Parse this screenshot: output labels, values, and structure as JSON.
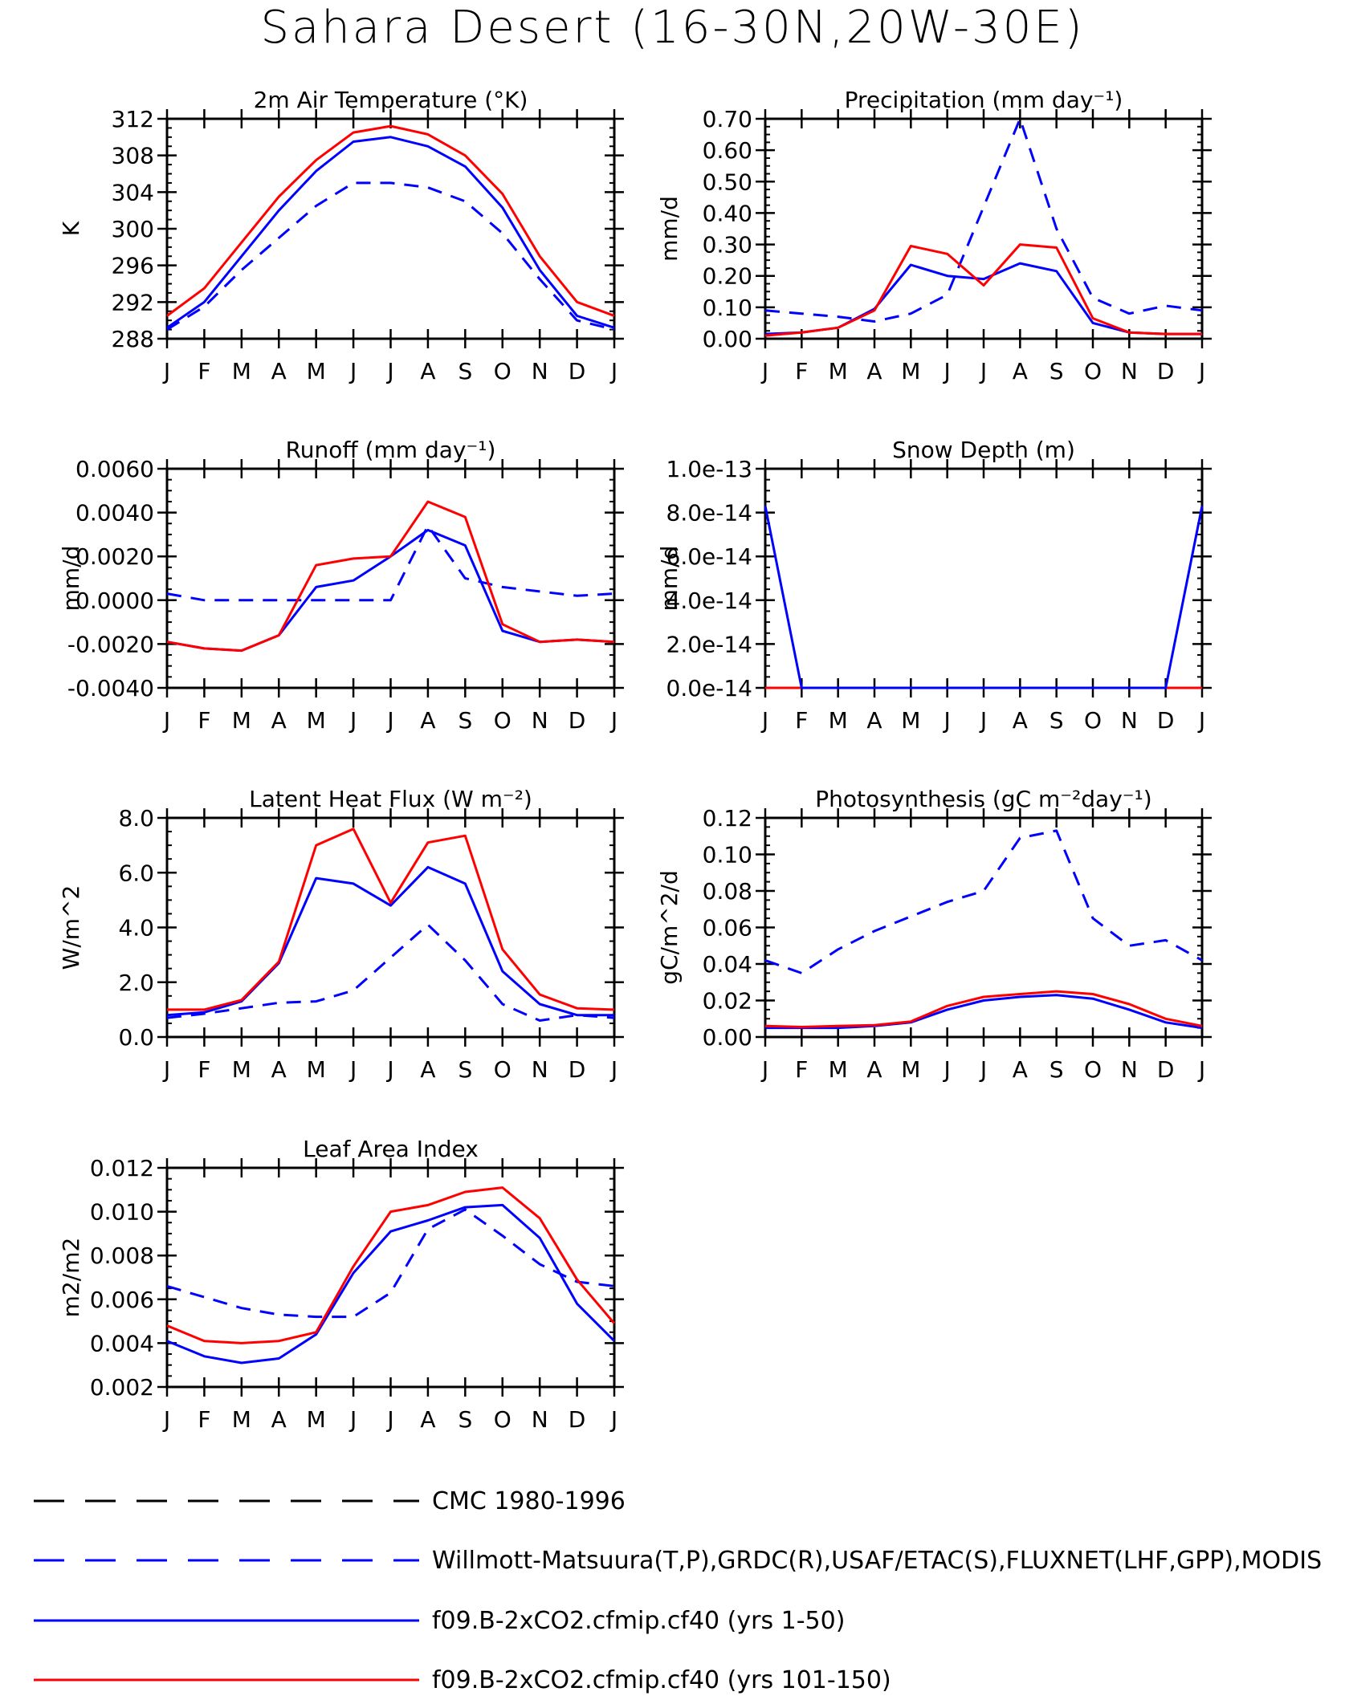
{
  "title": "Sahara Desert (16-30N,20W-30E)",
  "months": [
    "J",
    "F",
    "M",
    "A",
    "M",
    "J",
    "J",
    "A",
    "S",
    "O",
    "N",
    "D",
    "J"
  ],
  "colors": {
    "obs": "#0000ff",
    "cmc": "#000000",
    "run1": "#0000ff",
    "run2": "#ff0000"
  },
  "legend": [
    {
      "label": "CMC 1980-1996",
      "color": "#000000",
      "dash": true
    },
    {
      "label": "Willmott-Matsuura(T,P),GRDC(R),USAF/ETAC(S),FLUXNET(LHF,GPP),MODIS",
      "color": "#0000ff",
      "dash": true
    },
    {
      "label": "f09.B-2xCO2.cfmip.cf40 (yrs 1-50)",
      "color": "#0000ff",
      "dash": false
    },
    {
      "label": "f09.B-2xCO2.cfmip.cf40 (yrs 101-150)",
      "color": "#ff0000",
      "dash": false
    }
  ],
  "chart_data": [
    {
      "type": "line",
      "title": "2m Air Temperature (°K)",
      "ylabel": "K",
      "ylim": [
        288,
        312
      ],
      "yticks": [
        "288",
        "292",
        "296",
        "300",
        "304",
        "308",
        "312"
      ],
      "series": [
        {
          "name": "Willmott-Matsuura(T,P),GRDC(R),USAF/ETAC(S),FLUXNET(LHF,GPP),MODIS",
          "values": [
            289.0,
            291.5,
            295.5,
            299.0,
            302.5,
            305.0,
            305.0,
            304.5,
            303.0,
            299.5,
            294.5,
            290.0,
            289.0
          ]
        },
        {
          "name": "f09.B-2xCO2.cfmip.cf40 (yrs 1-50)",
          "values": [
            289.2,
            292.0,
            297.0,
            302.0,
            306.3,
            309.5,
            310.0,
            309.0,
            306.8,
            302.3,
            295.5,
            290.5,
            289.2
          ]
        },
        {
          "name": "f09.B-2xCO2.cfmip.cf40 (yrs 101-150)",
          "values": [
            290.5,
            293.5,
            298.5,
            303.5,
            307.5,
            310.5,
            311.2,
            310.3,
            308.0,
            303.8,
            297.0,
            292.0,
            290.5
          ]
        }
      ]
    },
    {
      "type": "line",
      "title": "Precipitation (mm day⁻¹)",
      "ylabel": "mm/d",
      "ylim": [
        0,
        0.7
      ],
      "yticks": [
        "0.00",
        "0.10",
        "0.20",
        "0.30",
        "0.40",
        "0.50",
        "0.60",
        "0.70"
      ],
      "series": [
        {
          "name": "Willmott-Matsuura(T,P),GRDC(R),USAF/ETAC(S),FLUXNET(LHF,GPP),MODIS",
          "values": [
            0.09,
            0.08,
            0.07,
            0.055,
            0.08,
            0.14,
            0.42,
            0.7,
            0.35,
            0.13,
            0.08,
            0.105,
            0.09
          ]
        },
        {
          "name": "f09.B-2xCO2.cfmip.cf40 (yrs 1-50)",
          "values": [
            0.015,
            0.02,
            0.035,
            0.095,
            0.235,
            0.2,
            0.19,
            0.24,
            0.215,
            0.05,
            0.02,
            0.015,
            0.015
          ]
        },
        {
          "name": "f09.B-2xCO2.cfmip.cf40 (yrs 101-150)",
          "values": [
            0.01,
            0.02,
            0.035,
            0.09,
            0.295,
            0.27,
            0.17,
            0.3,
            0.29,
            0.065,
            0.02,
            0.015,
            0.015
          ]
        }
      ]
    },
    {
      "type": "line",
      "title": "Runoff (mm day⁻¹)",
      "ylabel": "mm/d",
      "ylim": [
        -0.004,
        0.006
      ],
      "yticks": [
        "-0.0040",
        "-0.0020",
        "0.0000",
        "0.0020",
        "0.0040",
        "0.0060"
      ],
      "series": [
        {
          "name": "Willmott-Matsuura(T,P),GRDC(R),USAF/ETAC(S),FLUXNET(LHF,GPP),MODIS",
          "values": [
            0.0003,
            0.0,
            0.0,
            0.0,
            0.0,
            0.0,
            0.0,
            0.0034,
            0.001,
            0.0006,
            0.0004,
            0.0002,
            0.0003
          ]
        },
        {
          "name": "f09.B-2xCO2.cfmip.cf40 (yrs 1-50)",
          "values": [
            -0.0019,
            -0.0022,
            -0.0023,
            -0.0016,
            0.0006,
            0.0009,
            0.002,
            0.0032,
            0.0025,
            -0.0014,
            -0.0019,
            -0.0018,
            -0.0019
          ]
        },
        {
          "name": "f09.B-2xCO2.cfmip.cf40 (yrs 101-150)",
          "values": [
            -0.0019,
            -0.0022,
            -0.0023,
            -0.0016,
            0.0016,
            0.0019,
            0.002,
            0.0045,
            0.0038,
            -0.0011,
            -0.0019,
            -0.0018,
            -0.0019
          ]
        }
      ]
    },
    {
      "type": "line",
      "title": "Snow Depth (m)",
      "ylabel": "mm/d",
      "ylim": [
        0,
        1e-13
      ],
      "yticks": [
        "0.0e-14",
        "2.0e-14",
        "4.0e-14",
        "6.0e-14",
        "8.0e-14",
        "1.0e-13"
      ],
      "series": [
        {
          "name": "f09.B-2xCO2.cfmip.cf40 (yrs 101-150)",
          "values": [
            0,
            0,
            0,
            0,
            0,
            0,
            0,
            0,
            0,
            0,
            0,
            0,
            0
          ]
        },
        {
          "name": "f09.B-2xCO2.cfmip.cf40 (yrs 1-50)",
          "values": [
            8.3e-14,
            0,
            0,
            0,
            0,
            0,
            0,
            0,
            0,
            0,
            0,
            0,
            8.3e-14
          ]
        }
      ]
    },
    {
      "type": "line",
      "title": "Latent Heat Flux (W m⁻²)",
      "ylabel": "W/m^2",
      "ylim": [
        0,
        8
      ],
      "yticks": [
        "0.0",
        "2.0",
        "4.0",
        "6.0",
        "8.0"
      ],
      "series": [
        {
          "name": "Willmott-Matsuura(T,P),GRDC(R),USAF/ETAC(S),FLUXNET(LHF,GPP),MODIS",
          "values": [
            0.7,
            0.85,
            1.05,
            1.25,
            1.3,
            1.7,
            2.9,
            4.1,
            2.8,
            1.2,
            0.6,
            0.8,
            0.7
          ]
        },
        {
          "name": "f09.B-2xCO2.cfmip.cf40 (yrs 1-50)",
          "values": [
            0.8,
            0.9,
            1.3,
            2.7,
            5.8,
            5.6,
            4.8,
            6.2,
            5.6,
            2.4,
            1.2,
            0.8,
            0.8
          ]
        },
        {
          "name": "f09.B-2xCO2.cfmip.cf40 (yrs 101-150)",
          "values": [
            1.0,
            1.0,
            1.35,
            2.75,
            7.0,
            7.6,
            4.9,
            7.1,
            7.35,
            3.2,
            1.55,
            1.05,
            1.0
          ]
        }
      ]
    },
    {
      "type": "line",
      "title": "Photosynthesis (gC m⁻²day⁻¹)",
      "ylabel": "gC/m^2/d",
      "ylim": [
        0,
        0.12
      ],
      "yticks": [
        "0.00",
        "0.02",
        "0.04",
        "0.06",
        "0.08",
        "0.10",
        "0.12"
      ],
      "series": [
        {
          "name": "Willmott-Matsuura(T,P),GRDC(R),USAF/ETAC(S),FLUXNET(LHF,GPP),MODIS",
          "values": [
            0.042,
            0.035,
            0.048,
            0.058,
            0.066,
            0.074,
            0.08,
            0.109,
            0.113,
            0.065,
            0.05,
            0.053,
            0.042
          ]
        },
        {
          "name": "f09.B-2xCO2.cfmip.cf40 (yrs 1-50)",
          "values": [
            0.005,
            0.005,
            0.005,
            0.006,
            0.008,
            0.015,
            0.02,
            0.022,
            0.023,
            0.021,
            0.015,
            0.008,
            0.005
          ]
        },
        {
          "name": "f09.B-2xCO2.cfmip.cf40 (yrs 101-150)",
          "values": [
            0.006,
            0.0055,
            0.006,
            0.0065,
            0.0085,
            0.017,
            0.022,
            0.0235,
            0.025,
            0.0235,
            0.018,
            0.01,
            0.006
          ]
        }
      ]
    },
    {
      "type": "line",
      "title": "Leaf Area Index",
      "ylabel": "m2/m2",
      "ylim": [
        0.002,
        0.012
      ],
      "yticks": [
        "0.002",
        "0.004",
        "0.006",
        "0.008",
        "0.010",
        "0.012"
      ],
      "series": [
        {
          "name": "Willmott-Matsuura(T,P),GRDC(R),USAF/ETAC(S),FLUXNET(LHF,GPP),MODIS",
          "values": [
            0.0066,
            0.0061,
            0.0056,
            0.0053,
            0.0052,
            0.0052,
            0.0063,
            0.0092,
            0.0101,
            0.0089,
            0.0076,
            0.0068,
            0.0066
          ]
        },
        {
          "name": "f09.B-2xCO2.cfmip.cf40 (yrs 1-50)",
          "values": [
            0.0041,
            0.0034,
            0.0031,
            0.0033,
            0.0044,
            0.0072,
            0.0091,
            0.0096,
            0.0102,
            0.0103,
            0.0088,
            0.0058,
            0.0041
          ]
        },
        {
          "name": "f09.B-2xCO2.cfmip.cf40 (yrs 101-150)",
          "values": [
            0.0048,
            0.0041,
            0.004,
            0.0041,
            0.0045,
            0.0075,
            0.01,
            0.0103,
            0.0109,
            0.0111,
            0.0097,
            0.0069,
            0.0049
          ]
        }
      ]
    }
  ]
}
